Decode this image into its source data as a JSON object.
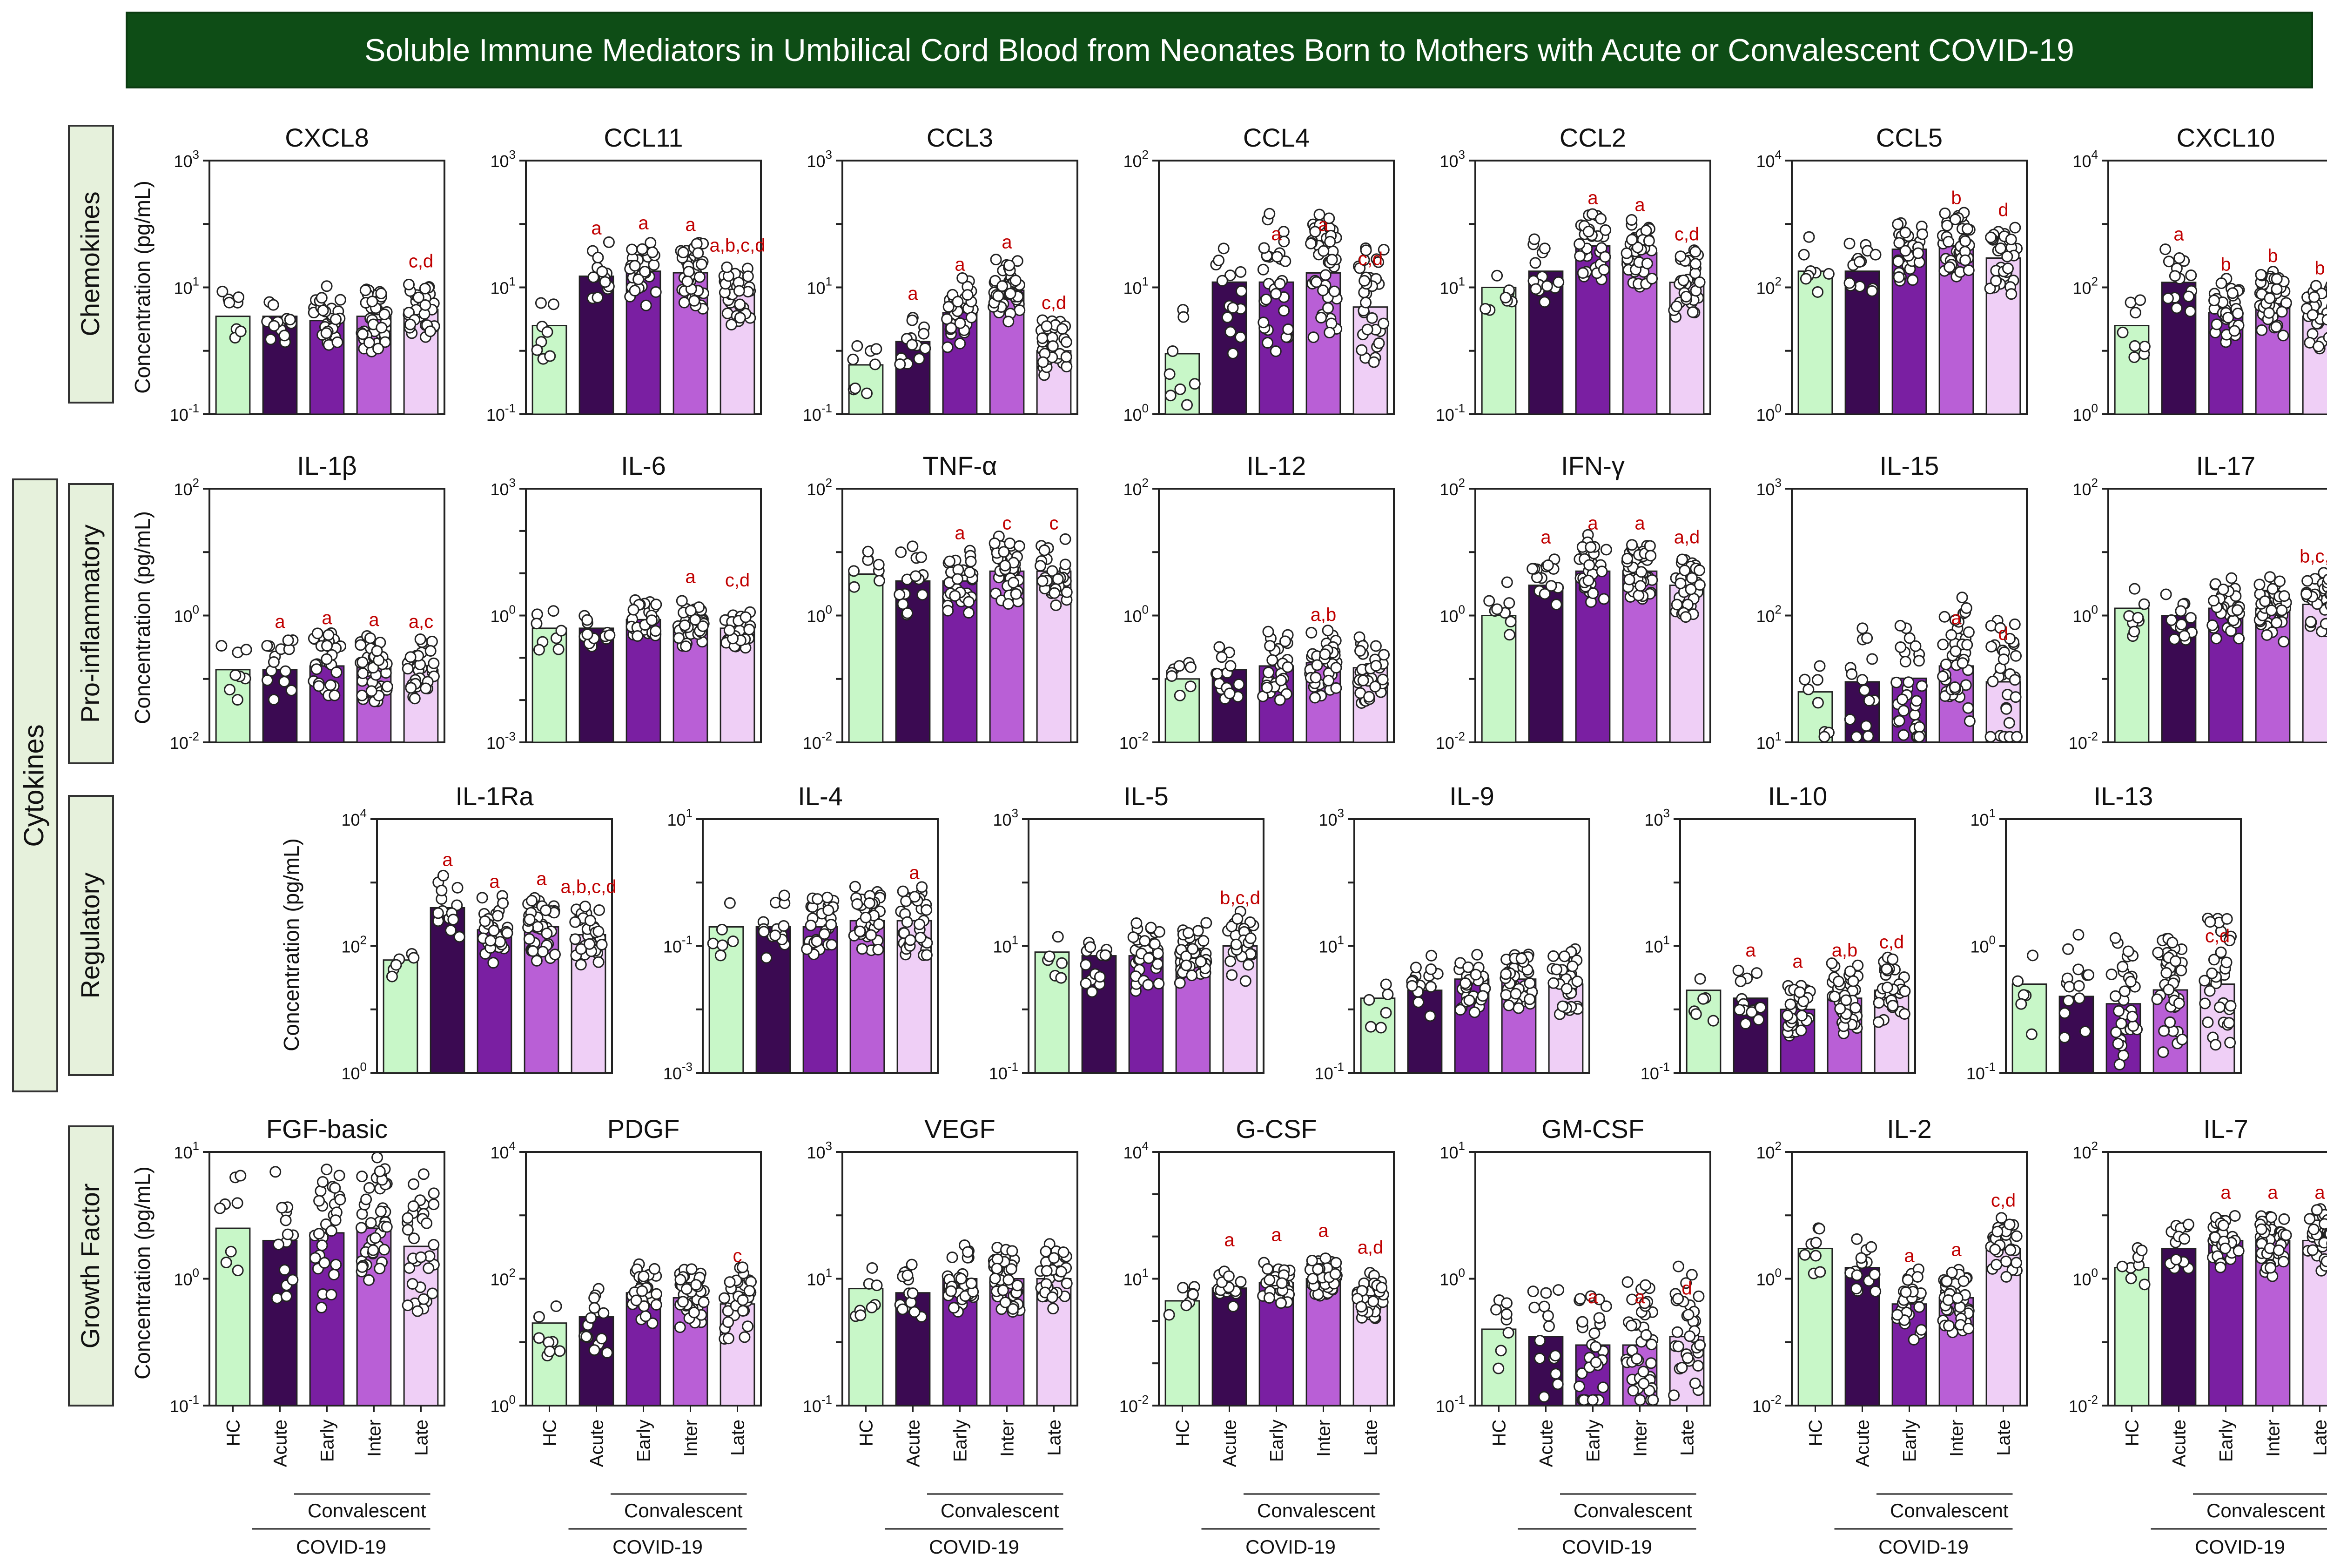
{
  "title": "Soluble Immune Mediators in Umbilical Cord Blood from Neonates Born to Mothers with Acute or Convalescent COVID-19",
  "colors": {
    "title_bg": "#0e4d16",
    "label_box": "#e6f1dc",
    "annotation": "#c00000",
    "groups": [
      "#c8f7c8",
      "#3b0a52",
      "#7a1fa2",
      "#b95fd6",
      "#efcff6"
    ]
  },
  "section_labels": {
    "cytokines": "Cytokines",
    "chemokines": "Chemokines",
    "pro_inflammatory": "Pro-inflammatory",
    "regulatory": "Regulatory",
    "growth_factor": "Growth Factor"
  },
  "y_axis_label": "Concentration (pg/mL)",
  "x_labels": {
    "groups": [
      "HC",
      "Acute",
      "Early",
      "Inter",
      "Late"
    ],
    "convalescent": "Convalescent",
    "covid": "COVID-19"
  },
  "chart_data": [
    {
      "type": "bar",
      "row": "chemokines",
      "title": "CXCL8",
      "yscale": "log",
      "ylim_exp": [
        -1,
        3
      ],
      "categories": [
        "HC",
        "Acute",
        "Early",
        "Inter",
        "Late"
      ],
      "values": [
        3.5,
        3.5,
        3.0,
        3.5,
        4.5
      ],
      "annotations": [
        "",
        "",
        "",
        "",
        "c,d"
      ]
    },
    {
      "type": "bar",
      "row": "chemokines",
      "title": "CCL11",
      "yscale": "log",
      "ylim_exp": [
        -1,
        3
      ],
      "categories": [
        "HC",
        "Acute",
        "Early",
        "Inter",
        "Late"
      ],
      "values": [
        2.5,
        15,
        18,
        17,
        8
      ],
      "annotations": [
        "",
        "a",
        "a",
        "a",
        "a,b,c,d"
      ]
    },
    {
      "type": "bar",
      "row": "chemokines",
      "title": "CCL3",
      "yscale": "log",
      "ylim_exp": [
        -1,
        3
      ],
      "categories": [
        "HC",
        "Acute",
        "Early",
        "Inter",
        "Late"
      ],
      "values": [
        0.6,
        1.4,
        4,
        9,
        1.0
      ],
      "annotations": [
        "",
        "a",
        "a",
        "a",
        "c,d"
      ]
    },
    {
      "type": "bar",
      "row": "chemokines",
      "title": "CCL4",
      "yscale": "log",
      "ylim_exp": [
        0,
        2
      ],
      "categories": [
        "HC",
        "Acute",
        "Early",
        "Inter",
        "Late"
      ],
      "values": [
        3,
        11,
        11,
        13,
        7
      ],
      "annotations": [
        "",
        "",
        "a",
        "a",
        "c,d"
      ]
    },
    {
      "type": "bar",
      "row": "chemokines",
      "title": "CCL2",
      "yscale": "log",
      "ylim_exp": [
        -1,
        3
      ],
      "categories": [
        "HC",
        "Acute",
        "Early",
        "Inter",
        "Late"
      ],
      "values": [
        10,
        18,
        45,
        35,
        12
      ],
      "annotations": [
        "",
        "",
        "a",
        "a",
        "c,d"
      ]
    },
    {
      "type": "bar",
      "row": "chemokines",
      "title": "CCL5",
      "yscale": "log",
      "ylim_exp": [
        0,
        4
      ],
      "categories": [
        "HC",
        "Acute",
        "Early",
        "Inter",
        "Late"
      ],
      "values": [
        180,
        180,
        400,
        450,
        290
      ],
      "annotations": [
        "",
        "",
        "",
        "b",
        "d"
      ]
    },
    {
      "type": "bar",
      "row": "chemokines",
      "title": "CXCL10",
      "yscale": "log",
      "ylim_exp": [
        0,
        4
      ],
      "categories": [
        "HC",
        "Acute",
        "Early",
        "Inter",
        "Late"
      ],
      "values": [
        25,
        120,
        40,
        55,
        35
      ],
      "annotations": [
        "",
        "a",
        "b",
        "b",
        "b"
      ]
    },
    {
      "type": "bar",
      "row": "pro_inflammatory",
      "title": "IL-1β",
      "yscale": "log",
      "ylim_exp": [
        -2,
        2
      ],
      "categories": [
        "HC",
        "Acute",
        "Early",
        "Inter",
        "Late"
      ],
      "values": [
        0.14,
        0.14,
        0.16,
        0.15,
        0.14
      ],
      "annotations": [
        "",
        "a",
        "a",
        "a",
        "a,c"
      ]
    },
    {
      "type": "bar",
      "row": "pro_inflammatory",
      "title": "IL-6",
      "yscale": "log",
      "ylim_exp": [
        -3,
        3
      ],
      "categories": [
        "HC",
        "Acute",
        "Early",
        "Inter",
        "Late"
      ],
      "values": [
        0.5,
        0.5,
        0.8,
        0.6,
        0.5
      ],
      "annotations": [
        "",
        "",
        "",
        "a",
        "c,d"
      ]
    },
    {
      "type": "bar",
      "row": "pro_inflammatory",
      "title": "TNF-α",
      "yscale": "log",
      "ylim_exp": [
        -2,
        2
      ],
      "categories": [
        "HC",
        "Acute",
        "Early",
        "Inter",
        "Late"
      ],
      "values": [
        4.5,
        3.5,
        3.5,
        5,
        5
      ],
      "annotations": [
        "",
        "",
        "a",
        "c",
        "c"
      ]
    },
    {
      "type": "bar",
      "row": "pro_inflammatory",
      "title": "IL-12",
      "yscale": "log",
      "ylim_exp": [
        -2,
        2
      ],
      "categories": [
        "HC",
        "Acute",
        "Early",
        "Inter",
        "Late"
      ],
      "values": [
        0.1,
        0.14,
        0.16,
        0.18,
        0.15
      ],
      "annotations": [
        "",
        "",
        "",
        "a,b",
        ""
      ]
    },
    {
      "type": "bar",
      "row": "pro_inflammatory",
      "title": "IFN-γ",
      "yscale": "log",
      "ylim_exp": [
        -2,
        2
      ],
      "categories": [
        "HC",
        "Acute",
        "Early",
        "Inter",
        "Late"
      ],
      "values": [
        1,
        3,
        5,
        5,
        3
      ],
      "annotations": [
        "",
        "a",
        "a",
        "a",
        "a,d"
      ]
    },
    {
      "type": "bar",
      "row": "pro_inflammatory",
      "title": "IL-15",
      "yscale": "log",
      "ylim_exp": [
        1,
        3
      ],
      "categories": [
        "HC",
        "Acute",
        "Early",
        "Inter",
        "Late"
      ],
      "values": [
        25,
        30,
        32,
        40,
        30
      ],
      "annotations": [
        "",
        "",
        "",
        "a",
        "d"
      ]
    },
    {
      "type": "bar",
      "row": "pro_inflammatory",
      "title": "IL-17",
      "yscale": "log",
      "ylim_exp": [
        -2,
        2
      ],
      "categories": [
        "HC",
        "Acute",
        "Early",
        "Inter",
        "Late"
      ],
      "values": [
        1.3,
        1.0,
        1.3,
        1.3,
        1.5
      ],
      "annotations": [
        "",
        "",
        "",
        "",
        "b,c,d"
      ]
    },
    {
      "type": "bar",
      "row": "regulatory",
      "title": "IL-1Ra",
      "yscale": "log",
      "ylim_exp": [
        0,
        4
      ],
      "categories": [
        "HC",
        "Acute",
        "Early",
        "Inter",
        "Late"
      ],
      "values": [
        60,
        400,
        180,
        200,
        150
      ],
      "annotations": [
        "",
        "a",
        "a",
        "a",
        "a,b,c,d"
      ]
    },
    {
      "type": "bar",
      "row": "regulatory",
      "title": "IL-4",
      "yscale": "log",
      "ylim_exp": [
        -3,
        1
      ],
      "categories": [
        "HC",
        "Acute",
        "Early",
        "Inter",
        "Late"
      ],
      "values": [
        0.2,
        0.2,
        0.2,
        0.25,
        0.25
      ],
      "annotations": [
        "",
        "",
        "",
        "",
        "a"
      ]
    },
    {
      "type": "bar",
      "row": "regulatory",
      "title": "IL-5",
      "yscale": "log",
      "ylim_exp": [
        -1,
        3
      ],
      "categories": [
        "HC",
        "Acute",
        "Early",
        "Inter",
        "Late"
      ],
      "values": [
        8,
        7,
        7,
        8,
        10
      ],
      "annotations": [
        "",
        "",
        "",
        "",
        "b,c,d"
      ]
    },
    {
      "type": "bar",
      "row": "regulatory",
      "title": "IL-9",
      "yscale": "log",
      "ylim_exp": [
        -1,
        3
      ],
      "categories": [
        "HC",
        "Acute",
        "Early",
        "Inter",
        "Late"
      ],
      "values": [
        1.5,
        2.0,
        3.0,
        3.0,
        2.5
      ],
      "annotations": [
        "",
        "",
        "",
        "",
        ""
      ]
    },
    {
      "type": "bar",
      "row": "regulatory",
      "title": "IL-10",
      "yscale": "log",
      "ylim_exp": [
        -1,
        3
      ],
      "categories": [
        "HC",
        "Acute",
        "Early",
        "Inter",
        "Late"
      ],
      "values": [
        2.0,
        1.5,
        1.0,
        1.5,
        2.0
      ],
      "annotations": [
        "",
        "a",
        "a",
        "a,b",
        "c,d"
      ]
    },
    {
      "type": "bar",
      "row": "regulatory",
      "title": "IL-13",
      "yscale": "log",
      "ylim_exp": [
        -1,
        1
      ],
      "categories": [
        "HC",
        "Acute",
        "Early",
        "Inter",
        "Late"
      ],
      "values": [
        0.5,
        0.4,
        0.35,
        0.45,
        0.5
      ],
      "annotations": [
        "",
        "",
        "",
        "",
        "c,d"
      ]
    },
    {
      "type": "bar",
      "row": "growth_factor",
      "title": "FGF-basic",
      "yscale": "log",
      "ylim_exp": [
        -1,
        1
      ],
      "categories": [
        "HC",
        "Acute",
        "Early",
        "Inter",
        "Late"
      ],
      "values": [
        2.5,
        2.0,
        2.3,
        2.5,
        1.8
      ],
      "annotations": [
        "",
        "",
        "",
        "",
        ""
      ]
    },
    {
      "type": "bar",
      "row": "growth_factor",
      "title": "PDGF",
      "yscale": "log",
      "ylim_exp": [
        0,
        4
      ],
      "categories": [
        "HC",
        "Acute",
        "Early",
        "Inter",
        "Late"
      ],
      "values": [
        20,
        25,
        60,
        50,
        40
      ],
      "annotations": [
        "",
        "",
        "",
        "",
        "c"
      ]
    },
    {
      "type": "bar",
      "row": "growth_factor",
      "title": "VEGF",
      "yscale": "log",
      "ylim_exp": [
        -1,
        3
      ],
      "categories": [
        "HC",
        "Acute",
        "Early",
        "Inter",
        "Late"
      ],
      "values": [
        7,
        6,
        10,
        10,
        10
      ],
      "annotations": [
        "",
        "",
        "",
        "",
        ""
      ]
    },
    {
      "type": "bar",
      "row": "growth_factor",
      "title": "G-CSF",
      "yscale": "log",
      "ylim_exp": [
        -2,
        4
      ],
      "categories": [
        "HC",
        "Acute",
        "Early",
        "Inter",
        "Late"
      ],
      "values": [
        3,
        6,
        8,
        10,
        4
      ],
      "annotations": [
        "",
        "a",
        "a",
        "a",
        "a,d"
      ]
    },
    {
      "type": "bar",
      "row": "growth_factor",
      "title": "GM-CSF",
      "yscale": "log",
      "ylim_exp": [
        -1,
        1
      ],
      "categories": [
        "HC",
        "Acute",
        "Early",
        "Inter",
        "Late"
      ],
      "values": [
        0.4,
        0.35,
        0.3,
        0.3,
        0.35
      ],
      "annotations": [
        "",
        "",
        "a",
        "a",
        "d"
      ]
    },
    {
      "type": "bar",
      "row": "growth_factor",
      "title": "IL-2",
      "yscale": "log",
      "ylim_exp": [
        -2,
        2
      ],
      "categories": [
        "HC",
        "Acute",
        "Early",
        "Inter",
        "Late"
      ],
      "values": [
        3,
        1.5,
        0.4,
        0.5,
        3
      ],
      "annotations": [
        "",
        "",
        "a",
        "a",
        "c,d"
      ]
    },
    {
      "type": "bar",
      "row": "growth_factor",
      "title": "IL-7",
      "yscale": "log",
      "ylim_exp": [
        -2,
        2
      ],
      "categories": [
        "HC",
        "Acute",
        "Early",
        "Inter",
        "Late"
      ],
      "values": [
        1.5,
        3,
        4,
        4,
        4
      ],
      "annotations": [
        "",
        "",
        "a",
        "a",
        "a"
      ]
    }
  ]
}
